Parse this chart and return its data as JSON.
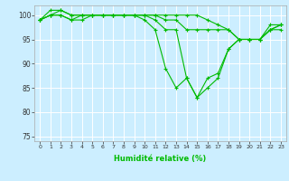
{
  "xlabel": "Humidité relative (%)",
  "bg_color": "#cceeff",
  "line_color": "#00bb00",
  "grid_color": "#ffffff",
  "xlim": [
    -0.5,
    23.5
  ],
  "ylim": [
    74,
    102
  ],
  "yticks": [
    75,
    80,
    85,
    90,
    95,
    100
  ],
  "xticks": [
    0,
    1,
    2,
    3,
    4,
    5,
    6,
    7,
    8,
    9,
    10,
    11,
    12,
    13,
    14,
    15,
    16,
    17,
    18,
    19,
    20,
    21,
    22,
    23
  ],
  "series": [
    [
      99,
      101,
      101,
      100,
      100,
      100,
      100,
      100,
      100,
      100,
      99,
      97,
      89,
      85,
      87,
      83,
      85,
      87,
      93,
      95,
      95,
      95,
      97,
      98
    ],
    [
      99,
      100,
      101,
      100,
      100,
      100,
      100,
      100,
      100,
      100,
      100,
      99,
      97,
      97,
      87,
      83,
      87,
      88,
      93,
      95,
      95,
      95,
      97,
      97
    ],
    [
      99,
      100,
      100,
      99,
      99,
      100,
      100,
      100,
      100,
      100,
      100,
      100,
      99,
      99,
      97,
      97,
      97,
      97,
      97,
      95,
      95,
      95,
      98,
      98
    ],
    [
      99,
      100,
      100,
      99,
      100,
      100,
      100,
      100,
      100,
      100,
      100,
      100,
      100,
      100,
      100,
      100,
      99,
      98,
      97,
      95,
      95,
      95,
      97,
      98
    ]
  ]
}
